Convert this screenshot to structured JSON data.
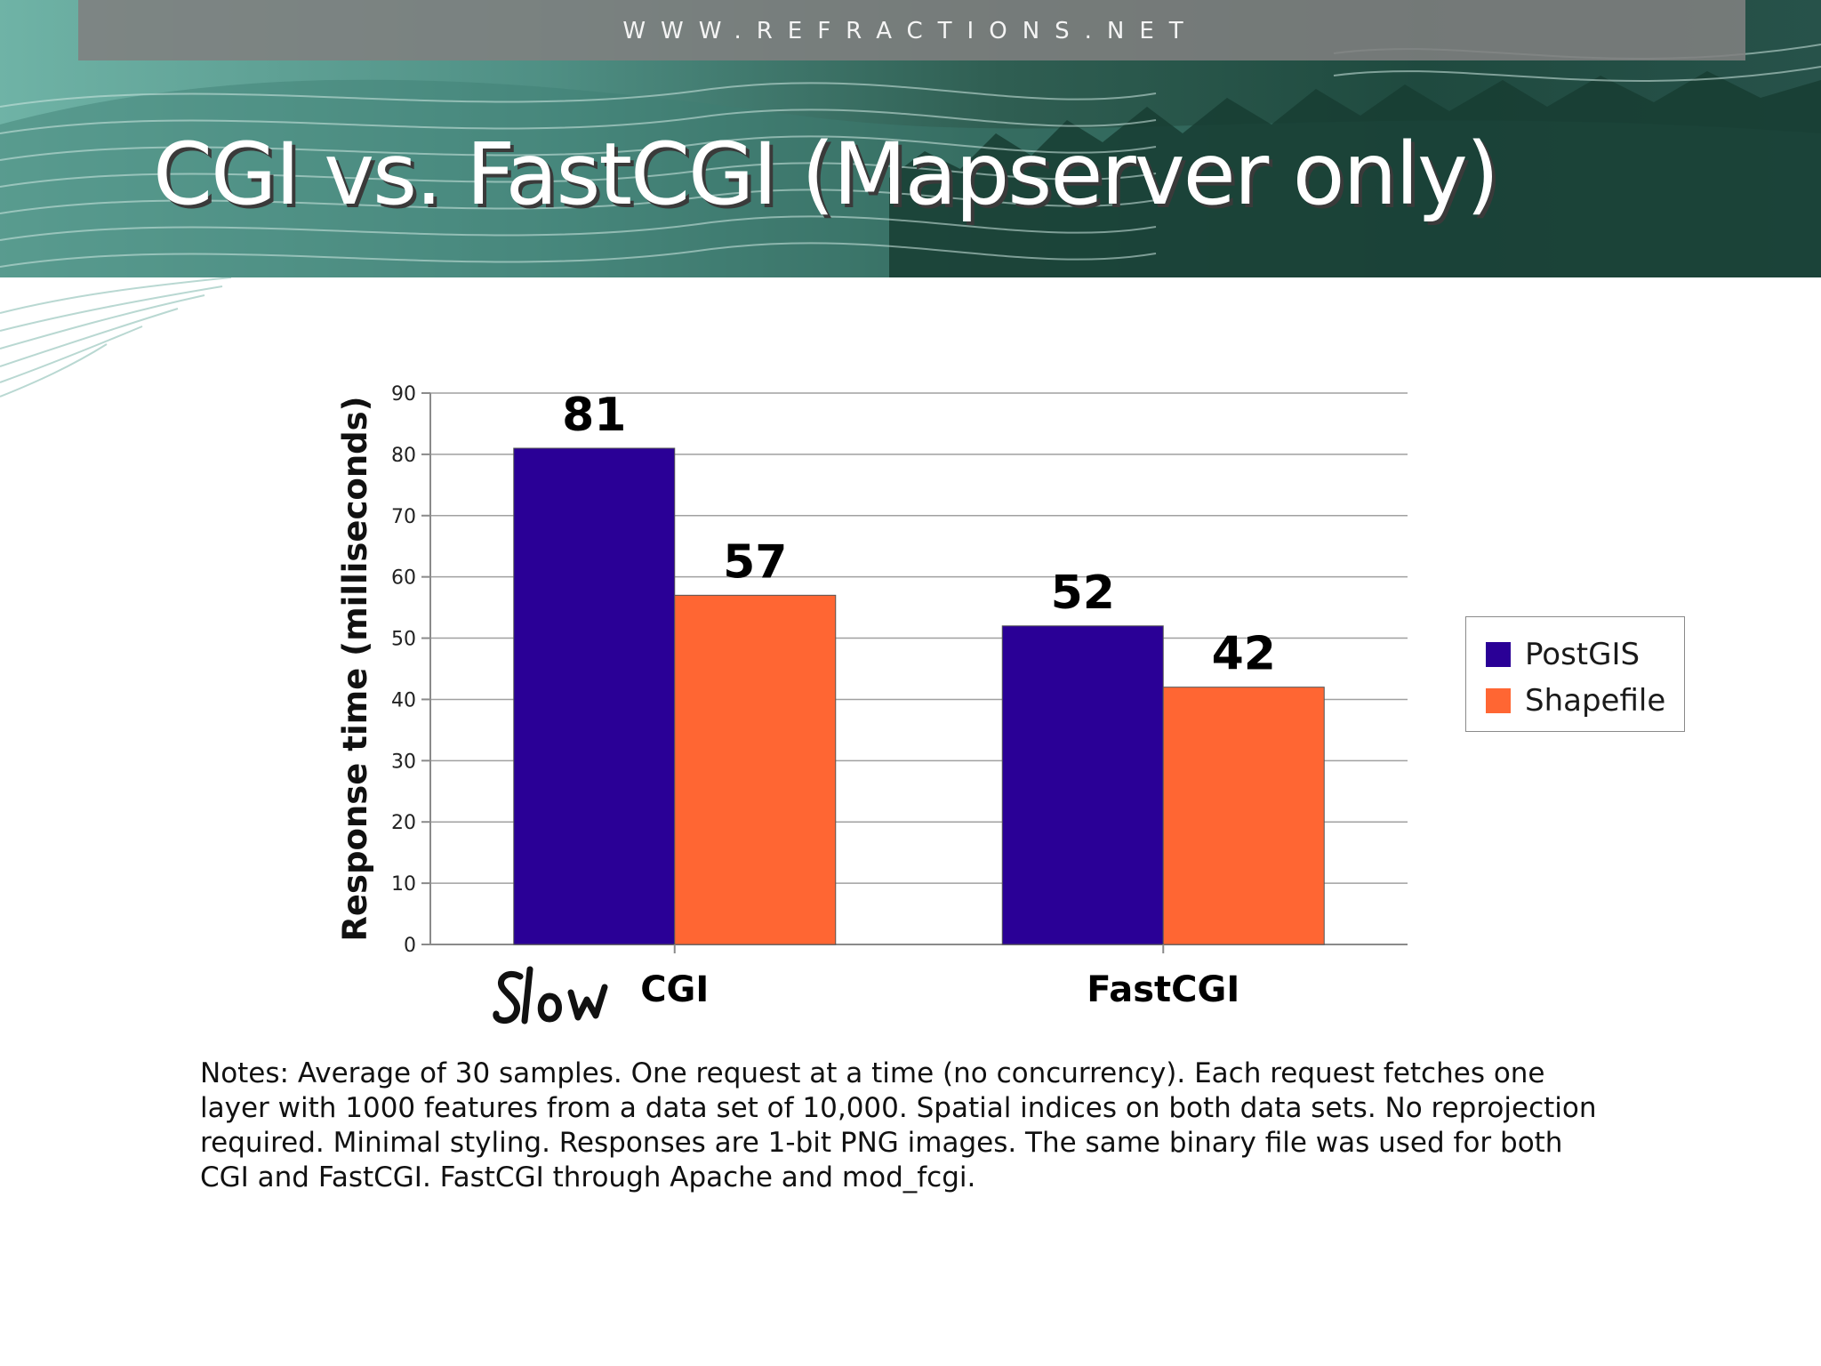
{
  "header": {
    "site_url": "WWW.REFRACTIONS.NET",
    "title": "CGI vs. FastCGI (Mapserver only)"
  },
  "chart_data": {
    "type": "bar",
    "categories": [
      "CGI",
      "FastCGI"
    ],
    "series": [
      {
        "name": "PostGIS",
        "values": [
          81,
          52
        ],
        "color": "#2a0096"
      },
      {
        "name": "Shapefile",
        "values": [
          57,
          42
        ],
        "color": "#ff6633"
      }
    ],
    "ylabel": "Response time (milliseconds)",
    "ylim": [
      0,
      90
    ],
    "yticks": [
      0,
      10,
      20,
      30,
      40,
      50,
      60,
      70,
      80,
      90
    ],
    "grid": true,
    "legend_position": "right",
    "annotations": [
      {
        "text": "Slow",
        "near": "CGI",
        "style": "handwritten"
      }
    ]
  },
  "notes": "Notes: Average of 30 samples.  One request at a time (no concurrency).  Each request fetches one layer with 1000 features from a data set of 10,000.  Spatial indices on both data sets.  No reprojection required.  Minimal styling.  Responses are 1-bit PNG images.  The same binary file was used for both CGI and FastCGI.  FastCGI through Apache and mod_fcgi."
}
